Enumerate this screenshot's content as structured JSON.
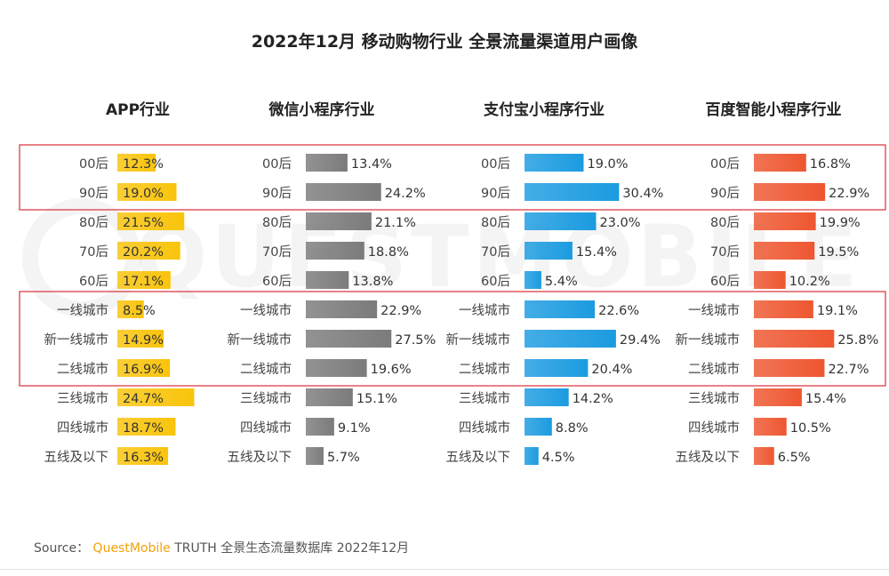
{
  "title": "2022年12月 移动购物行业 全景流量渠道用户画像",
  "source": {
    "label": "Source：",
    "brand": "QuestMobile",
    "text": "TRUTH 全景生态流量数据库 2022年12月"
  },
  "watermark": "QUESTMOBILE",
  "chart_data": {
    "type": "bar",
    "orientation": "horizontal",
    "categories": [
      "00后",
      "90后",
      "80后",
      "70后",
      "60后",
      "一线城市",
      "新一线城市",
      "二线城市",
      "三线城市",
      "四线城市",
      "五线及以下"
    ],
    "unit": "%",
    "series": [
      {
        "name": "APP行业",
        "color": "#f9c40b",
        "values": [
          12.3,
          19.0,
          21.5,
          20.2,
          17.1,
          8.5,
          14.9,
          16.9,
          24.7,
          18.7,
          16.3
        ]
      },
      {
        "name": "微信小程序行业",
        "color": "#7b7b7b",
        "values": [
          13.4,
          24.2,
          21.1,
          18.8,
          13.8,
          22.9,
          27.5,
          19.6,
          15.1,
          9.1,
          5.7
        ]
      },
      {
        "name": "支付宝小程序行业",
        "color": "#1b9be0",
        "values": [
          19.0,
          30.4,
          23.0,
          15.4,
          5.4,
          22.6,
          29.4,
          20.4,
          14.2,
          8.8,
          4.5
        ]
      },
      {
        "name": "百度智能小程序行业",
        "color": "#ee5630",
        "values": [
          16.8,
          22.9,
          19.9,
          19.5,
          10.2,
          19.1,
          25.8,
          22.7,
          15.4,
          10.5,
          6.5
        ]
      }
    ],
    "highlight_groups": [
      [
        "00后",
        "90后"
      ],
      [
        "一线城市",
        "新一线城市",
        "二线城市"
      ]
    ],
    "highlight_color": "#d9303a",
    "label_color": "#333333"
  }
}
